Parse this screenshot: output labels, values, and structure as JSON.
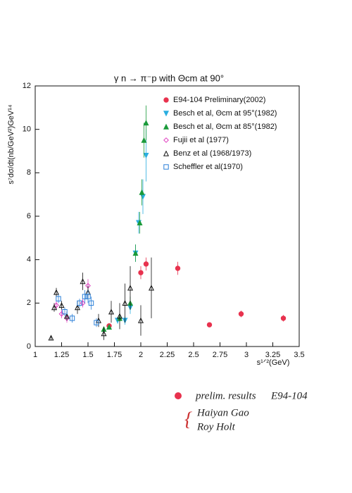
{
  "chart_data": {
    "type": "scatter",
    "title": "γ n → π⁻p with Θcm at 90°",
    "x_label": "s¹ᐟ²(GeV)",
    "y_label": "s⁷dσ/dt(nb/GeV²)GeV¹⁴",
    "xlim": [
      1,
      3.5
    ],
    "ylim": [
      0,
      12
    ],
    "xticks": [
      1,
      1.25,
      1.5,
      1.75,
      2,
      2.25,
      2.5,
      2.75,
      3,
      3.25,
      3.5
    ],
    "yticks": [
      0,
      2,
      4,
      6,
      8,
      10,
      12
    ],
    "legend": "top-right",
    "series": [
      {
        "name": "E94-104 Preliminary(2002)",
        "color": "#e8324e",
        "marker": "circle",
        "x": [
          1.7,
          2.0,
          2.05,
          2.35,
          2.65,
          2.95,
          3.35
        ],
        "values": [
          0.95,
          3.4,
          3.8,
          3.6,
          1.0,
          1.5,
          1.3
        ],
        "errors": [
          0.1,
          0.3,
          0.3,
          0.3,
          0.1,
          0.15,
          0.15
        ]
      },
      {
        "name": "Besch et al, Θcm at 95°(1982)",
        "color": "#2aaee0",
        "marker": "triangle-down",
        "x": [
          1.78,
          1.85,
          1.9,
          1.95,
          1.98,
          2.02,
          2.05
        ],
        "values": [
          1.2,
          1.2,
          1.8,
          4.3,
          5.7,
          6.9,
          8.8
        ],
        "errors": [
          0.15,
          0.2,
          0.3,
          0.4,
          0.5,
          0.8,
          1.2
        ]
      },
      {
        "name": "Besch et al, Θcm at 85°(1982)",
        "color": "#1a9a3a",
        "marker": "triangle-up",
        "x": [
          1.65,
          1.7,
          1.8,
          1.9,
          1.95,
          1.99,
          2.01,
          2.03,
          2.05
        ],
        "values": [
          0.8,
          0.9,
          1.3,
          2.0,
          4.3,
          5.7,
          7.1,
          9.5,
          10.3
        ],
        "errors": [
          0.1,
          0.1,
          0.15,
          0.3,
          0.4,
          0.5,
          0.6,
          0.8,
          0.8
        ]
      },
      {
        "name": "Fujii et al (1977)",
        "color": "#e040c0",
        "marker": "diamond",
        "x": [
          1.2,
          1.25,
          1.3,
          1.45,
          1.5
        ],
        "values": [
          1.9,
          1.5,
          1.3,
          2.0,
          2.8
        ],
        "errors": [
          0.2,
          0.2,
          0.2,
          0.2,
          0.3
        ]
      },
      {
        "name": "Benz et al (1968/1973)",
        "color": "#111111",
        "marker": "open-triangle",
        "x": [
          1.15,
          1.18,
          1.2,
          1.25,
          1.3,
          1.4,
          1.45,
          1.5,
          1.6,
          1.65,
          1.72,
          1.8,
          1.85,
          1.9,
          2.0,
          2.1
        ],
        "values": [
          0.4,
          1.8,
          2.5,
          1.9,
          1.4,
          1.8,
          3.0,
          2.5,
          1.2,
          0.6,
          1.6,
          1.4,
          2.0,
          2.7,
          1.2,
          2.7
        ],
        "errors": [
          0.1,
          0.2,
          0.2,
          0.2,
          0.2,
          0.3,
          0.4,
          0.3,
          0.3,
          0.3,
          0.5,
          0.6,
          0.9,
          1.0,
          0.7,
          1.4
        ]
      },
      {
        "name": "Scheffler et al(1970)",
        "color": "#2a7fd8",
        "marker": "open-square",
        "x": [
          1.22,
          1.28,
          1.35,
          1.42,
          1.47,
          1.5,
          1.53,
          1.58
        ],
        "values": [
          2.2,
          1.6,
          1.3,
          2.0,
          2.3,
          2.3,
          2.0,
          1.1
        ],
        "errors": [
          0.2,
          0.2,
          0.2,
          0.2,
          0.3,
          0.3,
          0.3,
          0.2
        ]
      }
    ],
    "annotations": [
      "prelim. results",
      "E94-104",
      "Haiyan Gao",
      "Roy Holt"
    ]
  }
}
